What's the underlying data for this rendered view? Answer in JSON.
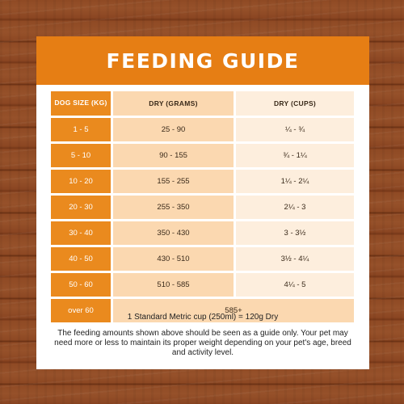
{
  "title": "FEEDING GUIDE",
  "table": {
    "headers": [
      "DOG SIZE (KG)",
      "DRY (GRAMS)",
      "DRY (CUPS)"
    ],
    "rows": [
      {
        "size": "1 - 5",
        "grams": "25 - 90",
        "cups": "¼ - ¾"
      },
      {
        "size": "5 - 10",
        "grams": "90 - 155",
        "cups": "¾ - 1¼"
      },
      {
        "size": "10 - 20",
        "grams": "155 - 255",
        "cups": "1¼ - 2¼"
      },
      {
        "size": "20 - 30",
        "grams": "255 - 350",
        "cups": "2¼ - 3"
      },
      {
        "size": "30 - 40",
        "grams": "350 - 430",
        "cups": "3 - 3½"
      },
      {
        "size": "40 - 50",
        "grams": "430 - 510",
        "cups": "3½ - 4¼"
      },
      {
        "size": "50 - 60",
        "grams": "510 - 585",
        "cups": "4¼ - 5"
      },
      {
        "size": "over 60",
        "grams": "585+"
      }
    ]
  },
  "note": "1 Standard Metric cup (250ml) = 120g Dry",
  "disclaimer": "The feeding amounts shown above should be seen as a guide only. Your pet may need more or less to maintain its proper weight depending on your pet's age, breed and activity level.",
  "colors": {
    "accent": "#e67e14",
    "grams_fill": "#fbd8b0",
    "cups_fill": "#fdeedd",
    "background_wood": "#8f4a24"
  }
}
